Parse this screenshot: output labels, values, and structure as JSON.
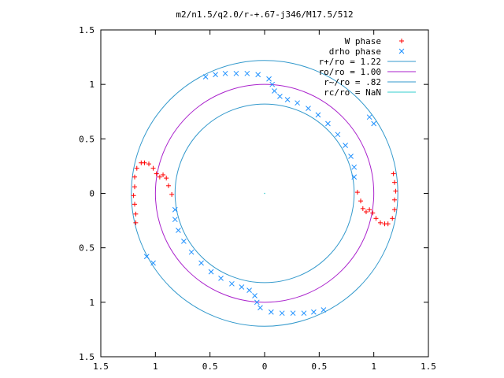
{
  "chart_data": {
    "type": "scatter",
    "title": "m2/n1.5/q2.0/r-+.67-j346/M17.5/512",
    "xlabel": "",
    "ylabel": "",
    "xlim": [
      -1.5,
      1.5
    ],
    "ylim": [
      -1.5,
      1.5
    ],
    "x_ticks": [
      "1.5",
      "1",
      "0.5",
      "0",
      "0.5",
      "1",
      "1.5"
    ],
    "x_tick_values": [
      -1.5,
      -1,
      -0.5,
      0,
      0.5,
      1,
      1.5
    ],
    "y_ticks": [
      "1.5",
      "1",
      "0.5",
      "0",
      "0.5",
      "1",
      "1.5"
    ],
    "y_tick_values": [
      1.5,
      1,
      0.5,
      0,
      -0.5,
      -1,
      -1.5
    ],
    "grid": false,
    "legend_position": "top-right",
    "legend": [
      {
        "label": "W phase",
        "marker": "+",
        "color": "#ff0000"
      },
      {
        "label": "drho phase",
        "marker": "x",
        "color": "#1e90ff"
      },
      {
        "label": "r+/ro = 1.22",
        "line": true,
        "color": "#3399cc"
      },
      {
        "label": "ro/ro = 1.00",
        "line": true,
        "color": "#aa22cc"
      },
      {
        "label": "r~/ro = .82",
        "line": true,
        "color": "#3399cc"
      },
      {
        "label": "rc/ro = NaN",
        "line": true,
        "color": "#33cccc"
      }
    ],
    "circles": [
      {
        "name": "r+/ro = 1.22",
        "r": 1.22,
        "color": "#3399cc"
      },
      {
        "name": "ro/ro = 1.00",
        "r": 1.0,
        "color": "#aa22cc"
      },
      {
        "name": "r~/ro = .82",
        "r": 0.82,
        "color": "#3399cc"
      }
    ],
    "series": [
      {
        "name": "W phase",
        "color": "#ff0000",
        "points": [
          [
            1.13,
            -0.28
          ],
          [
            1.1,
            -0.28
          ],
          [
            1.06,
            -0.27
          ],
          [
            1.02,
            -0.23
          ],
          [
            0.99,
            -0.18
          ],
          [
            0.96,
            -0.15
          ],
          [
            0.93,
            -0.17
          ],
          [
            0.9,
            -0.14
          ],
          [
            0.88,
            -0.07
          ],
          [
            0.85,
            0.01
          ],
          [
            1.17,
            -0.23
          ],
          [
            1.19,
            -0.15
          ],
          [
            1.19,
            -0.06
          ],
          [
            1.2,
            0.02
          ],
          [
            1.19,
            0.1
          ],
          [
            1.18,
            0.18
          ],
          [
            -1.13,
            0.28
          ],
          [
            -1.1,
            0.28
          ],
          [
            -1.06,
            0.27
          ],
          [
            -1.02,
            0.23
          ],
          [
            -0.99,
            0.18
          ],
          [
            -0.96,
            0.15
          ],
          [
            -0.93,
            0.17
          ],
          [
            -0.9,
            0.14
          ],
          [
            -0.88,
            0.07
          ],
          [
            -0.85,
            -0.01
          ],
          [
            -1.17,
            0.23
          ],
          [
            -1.19,
            0.15
          ],
          [
            -1.19,
            0.06
          ],
          [
            -1.2,
            -0.02
          ],
          [
            -1.19,
            -0.1
          ],
          [
            -1.18,
            -0.19
          ],
          [
            -1.18,
            -0.27
          ]
        ]
      },
      {
        "name": "drho phase",
        "color": "#1e90ff",
        "points": [
          [
            -0.54,
            1.07
          ],
          [
            -0.45,
            1.09
          ],
          [
            -0.36,
            1.1
          ],
          [
            -0.26,
            1.1
          ],
          [
            -0.16,
            1.1
          ],
          [
            -0.06,
            1.09
          ],
          [
            0.04,
            1.05
          ],
          [
            0.07,
            1.0
          ],
          [
            0.09,
            0.94
          ],
          [
            0.14,
            0.89
          ],
          [
            0.21,
            0.86
          ],
          [
            0.3,
            0.83
          ],
          [
            0.4,
            0.78
          ],
          [
            0.49,
            0.72
          ],
          [
            0.58,
            0.64
          ],
          [
            0.67,
            0.54
          ],
          [
            0.74,
            0.44
          ],
          [
            0.79,
            0.34
          ],
          [
            0.82,
            0.24
          ],
          [
            0.82,
            0.15
          ],
          [
            0.96,
            0.7
          ],
          [
            1.0,
            0.64
          ],
          [
            0.54,
            -1.07
          ],
          [
            0.45,
            -1.09
          ],
          [
            0.36,
            -1.1
          ],
          [
            0.26,
            -1.1
          ],
          [
            0.16,
            -1.1
          ],
          [
            0.06,
            -1.09
          ],
          [
            -0.04,
            -1.05
          ],
          [
            -0.07,
            -1.0
          ],
          [
            -0.09,
            -0.94
          ],
          [
            -0.14,
            -0.89
          ],
          [
            -0.21,
            -0.86
          ],
          [
            -0.3,
            -0.83
          ],
          [
            -0.4,
            -0.78
          ],
          [
            -0.49,
            -0.72
          ],
          [
            -0.58,
            -0.64
          ],
          [
            -0.67,
            -0.54
          ],
          [
            -0.74,
            -0.44
          ],
          [
            -0.79,
            -0.34
          ],
          [
            -0.82,
            -0.24
          ],
          [
            -0.82,
            -0.15
          ],
          [
            -1.08,
            -0.58
          ],
          [
            -1.02,
            -0.64
          ]
        ]
      }
    ]
  }
}
